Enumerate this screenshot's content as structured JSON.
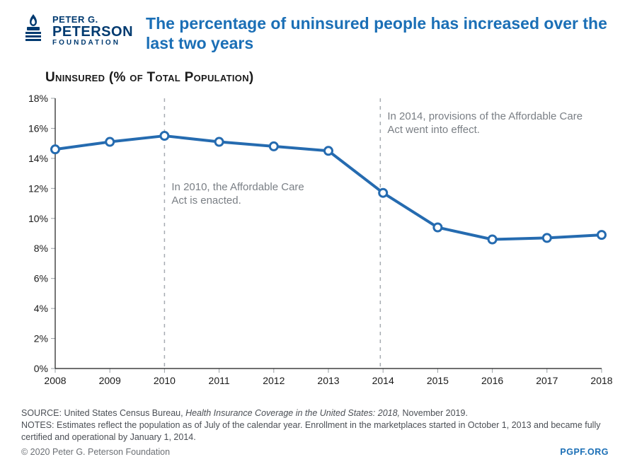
{
  "logo": {
    "line1": "PETER G.",
    "line2": "PETERSON",
    "line3": "FOUNDATION",
    "icon_color": "#003a70"
  },
  "headline": "The percentage of uninsured people has increased over the last two years",
  "subtitle": "Uninsured (% of Total Population)",
  "chart": {
    "type": "line",
    "background_color": "#ffffff",
    "series_color": "#256bb0",
    "marker_fill": "#ffffff",
    "marker_stroke": "#256bb0",
    "line_width": 4,
    "marker_radius": 5.5,
    "axis_color": "#1a1a1a",
    "tick_color": "#9aa0a6",
    "refline_color": "#a6abb1",
    "x_years": [
      2008,
      2009,
      2010,
      2011,
      2012,
      2013,
      2014,
      2015,
      2016,
      2017,
      2018
    ],
    "y_values": [
      14.6,
      15.1,
      15.5,
      15.1,
      14.8,
      14.5,
      11.7,
      9.4,
      8.6,
      8.7,
      8.9
    ],
    "xlim": [
      2008,
      2018
    ],
    "ylim": [
      0,
      18
    ],
    "ytick_step": 2,
    "ytick_suffix": "%",
    "reference_lines": [
      {
        "x": 2010,
        "label": "In 2010, the Affordable Care Act is enacted."
      },
      {
        "x": 2013.95,
        "label": "In 2014, provisions of the Affordable Care Act went into effect."
      }
    ],
    "axis_fontsize": 14,
    "annotation_fontsize": 15,
    "annotation_color": "#7a7f85"
  },
  "footer": {
    "source_label": "SOURCE: ",
    "source_text_pre": "United States Census Bureau, ",
    "source_text_italic": "Health Insurance Coverage in the United States: 2018, ",
    "source_text_post": "November 2019.",
    "notes_label": "NOTES: ",
    "notes_text": "Estimates reflect the population as of July of the calendar year. Enrollment in the marketplaces started in October 1, 2013 and became fully certified and operational by January 1, 2014.",
    "copyright": "© 2020 Peter G. Peterson Foundation",
    "site": "PGPF.ORG"
  }
}
